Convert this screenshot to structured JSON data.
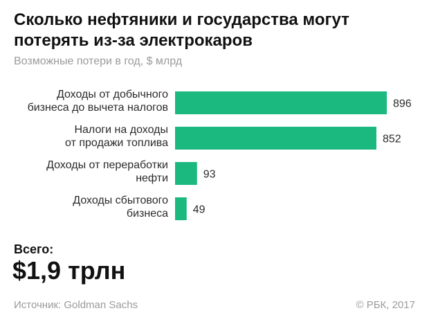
{
  "title": "Сколько нефтяники и государства могут потерять из-за электрокаров",
  "subtitle": "Возможные потери в год, $ млрд",
  "total": {
    "label": "Всего:",
    "value": "$1,9 трлн"
  },
  "source": "Источник: Goldman Sachs",
  "copyright": "© РБК, 2017",
  "colors": {
    "bar": "#1bb87f",
    "text": "#2a2a2a",
    "muted": "#9a9a9a"
  },
  "chart_data": {
    "type": "bar",
    "orientation": "horizontal",
    "categories": [
      [
        "Доходы от добычного",
        "бизнеса до вычета налогов"
      ],
      [
        "Налоги на доходы",
        "от продажи топлива"
      ],
      [
        "Доходы от переработки",
        "нефти"
      ],
      [
        "Доходы сбытового",
        "бизнеса"
      ]
    ],
    "values": [
      896,
      852,
      93,
      49
    ],
    "value_labels": [
      "896",
      "852",
      "93",
      "49"
    ],
    "xlim": [
      0,
      896
    ],
    "grid": false,
    "legend": "none"
  }
}
